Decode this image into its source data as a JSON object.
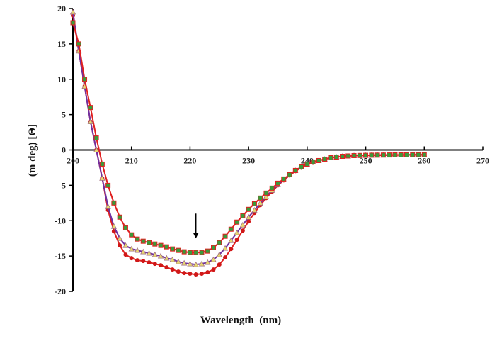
{
  "chart_data": {
    "type": "line",
    "title": "",
    "xlabel": "Wavelength  (nm)",
    "ylabel": "(m deg) [Θ]",
    "xlim": [
      200,
      270
    ],
    "ylim": [
      -20,
      20
    ],
    "xticks": [
      "200",
      "210",
      "220",
      "230",
      "240",
      "250",
      "260",
      "270"
    ],
    "yticks": [
      "20",
      "15",
      "10",
      "5",
      "0",
      "-5",
      "-10",
      "-15",
      "-20"
    ],
    "x": [
      200,
      201,
      202,
      203,
      204,
      205,
      206,
      207,
      208,
      209,
      210,
      211,
      212,
      213,
      214,
      215,
      216,
      217,
      218,
      219,
      220,
      221,
      222,
      223,
      224,
      225,
      226,
      227,
      228,
      229,
      230,
      231,
      232,
      233,
      234,
      235,
      236,
      237,
      238,
      239,
      240,
      241,
      242,
      243,
      244,
      245,
      246,
      247,
      248,
      249,
      250,
      251,
      252,
      253,
      254,
      255,
      256,
      257,
      258,
      259,
      260
    ],
    "series": [
      {
        "name": "circles",
        "line_color": "#e02020",
        "marker": "circle",
        "marker_color": "#d01818",
        "values": [
          19,
          14,
          9,
          4,
          0,
          -4,
          -8.5,
          -11.5,
          -13.5,
          -14.8,
          -15.3,
          -15.6,
          -15.7,
          -15.9,
          -16.1,
          -16.3,
          -16.6,
          -16.9,
          -17.2,
          -17.4,
          -17.5,
          -17.6,
          -17.5,
          -17.3,
          -16.9,
          -16.2,
          -15.2,
          -14,
          -12.7,
          -11.4,
          -10.1,
          -8.9,
          -7.8,
          -6.8,
          -5.9,
          -5,
          -4.3,
          -3.6,
          -3,
          -2.5,
          -2.1,
          -1.8,
          -1.5,
          -1.3,
          -1.1,
          -1,
          -0.9,
          -0.85,
          -0.8,
          -0.8,
          -0.78,
          -0.76,
          -0.75,
          -0.74,
          -0.73,
          -0.72,
          -0.71,
          -0.7,
          -0.7,
          -0.7,
          -0.7
        ]
      },
      {
        "name": "triangles",
        "line_color": "#7030a0",
        "marker": "triangle",
        "marker_color": "#e8d870",
        "values": [
          19.5,
          14,
          9,
          4,
          0,
          -4,
          -8,
          -10.8,
          -12.5,
          -13.5,
          -14,
          -14.2,
          -14.4,
          -14.6,
          -14.8,
          -15,
          -15.3,
          -15.5,
          -15.8,
          -16,
          -16.1,
          -16.2,
          -16.1,
          -15.9,
          -15.5,
          -14.8,
          -13.9,
          -12.8,
          -11.7,
          -10.6,
          -9.5,
          -8.5,
          -7.5,
          -6.6,
          -5.7,
          -4.9,
          -4.2,
          -3.5,
          -2.9,
          -2.4,
          -2,
          -1.7,
          -1.5,
          -1.3,
          -1.1,
          -1,
          -0.9,
          -0.85,
          -0.8,
          -0.78,
          -0.76,
          -0.74,
          -0.73,
          -0.72,
          -0.71,
          -0.7,
          -0.7,
          -0.69,
          -0.68,
          -0.68,
          -0.68
        ]
      },
      {
        "name": "squares",
        "line_color": "#e02020",
        "marker": "square",
        "marker_color": "#3a9a3a",
        "values": [
          18,
          15,
          10,
          6,
          1.7,
          -2,
          -5,
          -7.5,
          -9.5,
          -11,
          -12,
          -12.6,
          -12.9,
          -13.1,
          -13.3,
          -13.5,
          -13.7,
          -14,
          -14.2,
          -14.4,
          -14.5,
          -14.5,
          -14.5,
          -14.3,
          -13.8,
          -13.1,
          -12.2,
          -11.2,
          -10.2,
          -9.3,
          -8.4,
          -7.6,
          -6.8,
          -6.1,
          -5.4,
          -4.7,
          -4.1,
          -3.5,
          -2.9,
          -2.4,
          -2,
          -1.7,
          -1.5,
          -1.3,
          -1.1,
          -1,
          -0.9,
          -0.85,
          -0.8,
          -0.78,
          -0.76,
          -0.74,
          -0.73,
          -0.72,
          -0.71,
          -0.7,
          -0.7,
          -0.69,
          -0.68,
          -0.68,
          -0.68
        ]
      }
    ],
    "annotations": [
      {
        "type": "arrow",
        "x": 221,
        "y_from": -9,
        "y_to": -12.5
      }
    ],
    "grid": false,
    "legend": "none"
  }
}
